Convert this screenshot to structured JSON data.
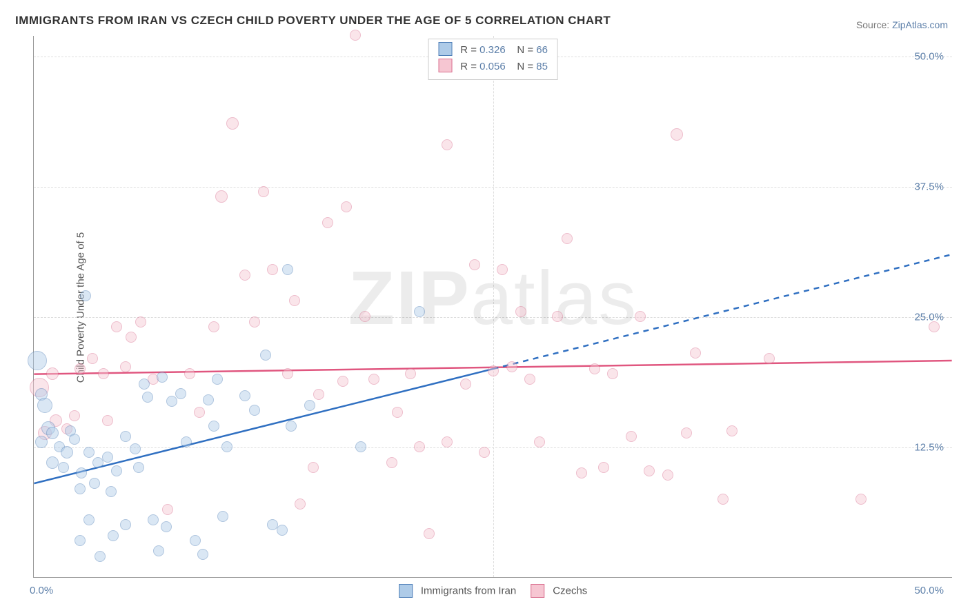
{
  "title": "IMMIGRANTS FROM IRAN VS CZECH CHILD POVERTY UNDER THE AGE OF 5 CORRELATION CHART",
  "source_label": "Source: ",
  "source_value": "ZipAtlas.com",
  "ylabel": "Child Poverty Under the Age of 5",
  "watermark_a": "ZIP",
  "watermark_b": "atlas",
  "chart": {
    "type": "scatter",
    "xlim": [
      0,
      50
    ],
    "ylim": [
      0,
      52
    ],
    "y_ticks": [
      12.5,
      25.0,
      37.5,
      50.0
    ],
    "y_tick_labels": [
      "12.5%",
      "25.0%",
      "37.5%",
      "50.0%"
    ],
    "x_ticks": [
      0,
      50
    ],
    "x_tick_labels": [
      "0.0%",
      "50.0%"
    ],
    "x_grid_at": [
      25.0
    ],
    "background_color": "#ffffff",
    "grid_color": "#dddddd",
    "axis_color": "#999999",
    "marker_opacity": 0.45
  },
  "series": {
    "blue": {
      "label": "Immigrants from Iran",
      "R": "0.326",
      "N": "66",
      "fill": "#aecbe8",
      "stroke": "#4f7fb8",
      "trend_color": "#2f6fc1",
      "trend_solid": {
        "x1": 0,
        "y1": 9.0,
        "x2": 25,
        "y2": 20.0
      },
      "trend_dashed": {
        "x1": 25,
        "y1": 20.0,
        "x2": 50,
        "y2": 31.0
      },
      "points": [
        {
          "x": 0.2,
          "y": 20.8,
          "r": 14
        },
        {
          "x": 0.4,
          "y": 17.5,
          "r": 9
        },
        {
          "x": 0.6,
          "y": 16.5,
          "r": 11
        },
        {
          "x": 0.8,
          "y": 14.3,
          "r": 10
        },
        {
          "x": 0.4,
          "y": 13.0,
          "r": 9
        },
        {
          "x": 1.0,
          "y": 13.8,
          "r": 9
        },
        {
          "x": 1.4,
          "y": 12.5,
          "r": 8
        },
        {
          "x": 1.8,
          "y": 12.0,
          "r": 9
        },
        {
          "x": 1.0,
          "y": 11.0,
          "r": 9
        },
        {
          "x": 1.6,
          "y": 10.5,
          "r": 8
        },
        {
          "x": 2.0,
          "y": 14.0,
          "r": 8
        },
        {
          "x": 2.2,
          "y": 13.2,
          "r": 8
        },
        {
          "x": 2.6,
          "y": 10.0,
          "r": 8
        },
        {
          "x": 3.0,
          "y": 12.0,
          "r": 8
        },
        {
          "x": 3.5,
          "y": 11.0,
          "r": 8
        },
        {
          "x": 2.5,
          "y": 8.5,
          "r": 8
        },
        {
          "x": 3.3,
          "y": 9.0,
          "r": 8
        },
        {
          "x": 4.0,
          "y": 11.5,
          "r": 8
        },
        {
          "x": 2.8,
          "y": 27.0,
          "r": 8
        },
        {
          "x": 4.5,
          "y": 10.2,
          "r": 8
        },
        {
          "x": 4.2,
          "y": 8.2,
          "r": 8
        },
        {
          "x": 5.0,
          "y": 13.5,
          "r": 8
        },
        {
          "x": 5.5,
          "y": 12.3,
          "r": 8
        },
        {
          "x": 5.7,
          "y": 10.5,
          "r": 8
        },
        {
          "x": 6.0,
          "y": 18.5,
          "r": 8
        },
        {
          "x": 6.2,
          "y": 17.3,
          "r": 8
        },
        {
          "x": 6.5,
          "y": 5.5,
          "r": 8
        },
        {
          "x": 5.0,
          "y": 5.0,
          "r": 8
        },
        {
          "x": 4.3,
          "y": 4.0,
          "r": 8
        },
        {
          "x": 3.6,
          "y": 2.0,
          "r": 8
        },
        {
          "x": 2.5,
          "y": 3.5,
          "r": 8
        },
        {
          "x": 3.0,
          "y": 5.5,
          "r": 8
        },
        {
          "x": 6.8,
          "y": 2.5,
          "r": 8
        },
        {
          "x": 7.0,
          "y": 19.2,
          "r": 8
        },
        {
          "x": 7.5,
          "y": 16.9,
          "r": 8
        },
        {
          "x": 8.0,
          "y": 17.6,
          "r": 8
        },
        {
          "x": 8.3,
          "y": 13.0,
          "r": 8
        },
        {
          "x": 8.8,
          "y": 3.5,
          "r": 8
        },
        {
          "x": 7.2,
          "y": 4.8,
          "r": 8
        },
        {
          "x": 9.5,
          "y": 17.0,
          "r": 8
        },
        {
          "x": 9.8,
          "y": 14.5,
          "r": 8
        },
        {
          "x": 10.0,
          "y": 19.0,
          "r": 8
        },
        {
          "x": 10.5,
          "y": 12.5,
          "r": 8
        },
        {
          "x": 10.3,
          "y": 5.8,
          "r": 8
        },
        {
          "x": 11.5,
          "y": 17.4,
          "r": 8
        },
        {
          "x": 12.0,
          "y": 16.0,
          "r": 8
        },
        {
          "x": 12.6,
          "y": 21.3,
          "r": 8
        },
        {
          "x": 13.0,
          "y": 5.0,
          "r": 8
        },
        {
          "x": 13.5,
          "y": 4.5,
          "r": 8
        },
        {
          "x": 13.8,
          "y": 29.5,
          "r": 8
        },
        {
          "x": 14.0,
          "y": 14.5,
          "r": 8
        },
        {
          "x": 15.0,
          "y": 16.5,
          "r": 8
        },
        {
          "x": 17.8,
          "y": 12.5,
          "r": 8
        },
        {
          "x": 21.0,
          "y": 25.5,
          "r": 8
        },
        {
          "x": 9.2,
          "y": 2.2,
          "r": 8
        }
      ]
    },
    "pink": {
      "label": "Czechs",
      "R": "0.056",
      "N": "85",
      "fill": "#f6c6d2",
      "stroke": "#d96f8f",
      "trend_color": "#e0567f",
      "trend_solid": {
        "x1": 0,
        "y1": 19.5,
        "x2": 50,
        "y2": 20.8
      },
      "points": [
        {
          "x": 0.3,
          "y": 18.2,
          "r": 14
        },
        {
          "x": 0.6,
          "y": 13.8,
          "r": 10
        },
        {
          "x": 1.2,
          "y": 15.0,
          "r": 9
        },
        {
          "x": 1.8,
          "y": 14.2,
          "r": 8
        },
        {
          "x": 1.0,
          "y": 19.5,
          "r": 9
        },
        {
          "x": 2.5,
          "y": 20.0,
          "r": 8
        },
        {
          "x": 2.2,
          "y": 15.5,
          "r": 8
        },
        {
          "x": 3.2,
          "y": 21.0,
          "r": 8
        },
        {
          "x": 3.8,
          "y": 19.5,
          "r": 8
        },
        {
          "x": 4.5,
          "y": 24.0,
          "r": 8
        },
        {
          "x": 4.0,
          "y": 15.0,
          "r": 8
        },
        {
          "x": 5.0,
          "y": 20.2,
          "r": 8
        },
        {
          "x": 5.3,
          "y": 23.0,
          "r": 8
        },
        {
          "x": 5.8,
          "y": 24.5,
          "r": 8
        },
        {
          "x": 6.5,
          "y": 19.0,
          "r": 8
        },
        {
          "x": 7.3,
          "y": 6.5,
          "r": 8
        },
        {
          "x": 8.5,
          "y": 19.5,
          "r": 8
        },
        {
          "x": 9.0,
          "y": 15.8,
          "r": 8
        },
        {
          "x": 9.8,
          "y": 24.0,
          "r": 8
        },
        {
          "x": 10.2,
          "y": 36.5,
          "r": 9
        },
        {
          "x": 10.8,
          "y": 43.5,
          "r": 9
        },
        {
          "x": 11.5,
          "y": 29.0,
          "r": 8
        },
        {
          "x": 12.0,
          "y": 24.5,
          "r": 8
        },
        {
          "x": 12.5,
          "y": 37.0,
          "r": 8
        },
        {
          "x": 13.0,
          "y": 29.5,
          "r": 8
        },
        {
          "x": 13.8,
          "y": 19.5,
          "r": 8
        },
        {
          "x": 14.5,
          "y": 7.0,
          "r": 8
        },
        {
          "x": 14.2,
          "y": 26.5,
          "r": 8
        },
        {
          "x": 15.2,
          "y": 10.5,
          "r": 8
        },
        {
          "x": 15.5,
          "y": 17.5,
          "r": 8
        },
        {
          "x": 16.0,
          "y": 34.0,
          "r": 8
        },
        {
          "x": 16.8,
          "y": 18.8,
          "r": 8
        },
        {
          "x": 17.0,
          "y": 35.5,
          "r": 8
        },
        {
          "x": 17.5,
          "y": 52.0,
          "r": 8
        },
        {
          "x": 18.0,
          "y": 25.0,
          "r": 8
        },
        {
          "x": 18.5,
          "y": 19.0,
          "r": 8
        },
        {
          "x": 19.5,
          "y": 11.0,
          "r": 8
        },
        {
          "x": 19.8,
          "y": 15.8,
          "r": 8
        },
        {
          "x": 20.5,
          "y": 19.5,
          "r": 8
        },
        {
          "x": 21.0,
          "y": 12.5,
          "r": 8
        },
        {
          "x": 21.5,
          "y": 4.2,
          "r": 8
        },
        {
          "x": 22.5,
          "y": 41.5,
          "r": 8
        },
        {
          "x": 22.5,
          "y": 13.0,
          "r": 8
        },
        {
          "x": 23.5,
          "y": 18.5,
          "r": 8
        },
        {
          "x": 24.0,
          "y": 30.0,
          "r": 8
        },
        {
          "x": 24.5,
          "y": 12.0,
          "r": 8
        },
        {
          "x": 25.0,
          "y": 19.8,
          "r": 8
        },
        {
          "x": 25.5,
          "y": 29.5,
          "r": 8
        },
        {
          "x": 26.0,
          "y": 20.2,
          "r": 8
        },
        {
          "x": 26.5,
          "y": 25.5,
          "r": 8
        },
        {
          "x": 27.0,
          "y": 19.0,
          "r": 8
        },
        {
          "x": 27.5,
          "y": 13.0,
          "r": 8
        },
        {
          "x": 28.5,
          "y": 25.0,
          "r": 8
        },
        {
          "x": 29.0,
          "y": 32.5,
          "r": 8
        },
        {
          "x": 29.8,
          "y": 10.0,
          "r": 8
        },
        {
          "x": 30.5,
          "y": 20.0,
          "r": 8
        },
        {
          "x": 31.0,
          "y": 10.5,
          "r": 8
        },
        {
          "x": 31.5,
          "y": 19.5,
          "r": 8
        },
        {
          "x": 32.5,
          "y": 13.5,
          "r": 8
        },
        {
          "x": 33.0,
          "y": 25.0,
          "r": 8
        },
        {
          "x": 33.5,
          "y": 10.2,
          "r": 8
        },
        {
          "x": 34.5,
          "y": 9.8,
          "r": 8
        },
        {
          "x": 35.0,
          "y": 42.5,
          "r": 9
        },
        {
          "x": 35.5,
          "y": 13.8,
          "r": 8
        },
        {
          "x": 36.0,
          "y": 21.5,
          "r": 8
        },
        {
          "x": 37.5,
          "y": 7.5,
          "r": 8
        },
        {
          "x": 38.0,
          "y": 14.0,
          "r": 8
        },
        {
          "x": 40.0,
          "y": 21.0,
          "r": 8
        },
        {
          "x": 45.0,
          "y": 7.5,
          "r": 8
        },
        {
          "x": 49.0,
          "y": 24.0,
          "r": 8
        }
      ]
    }
  },
  "legend_top": {
    "r_label": "R =",
    "n_label": "N ="
  }
}
